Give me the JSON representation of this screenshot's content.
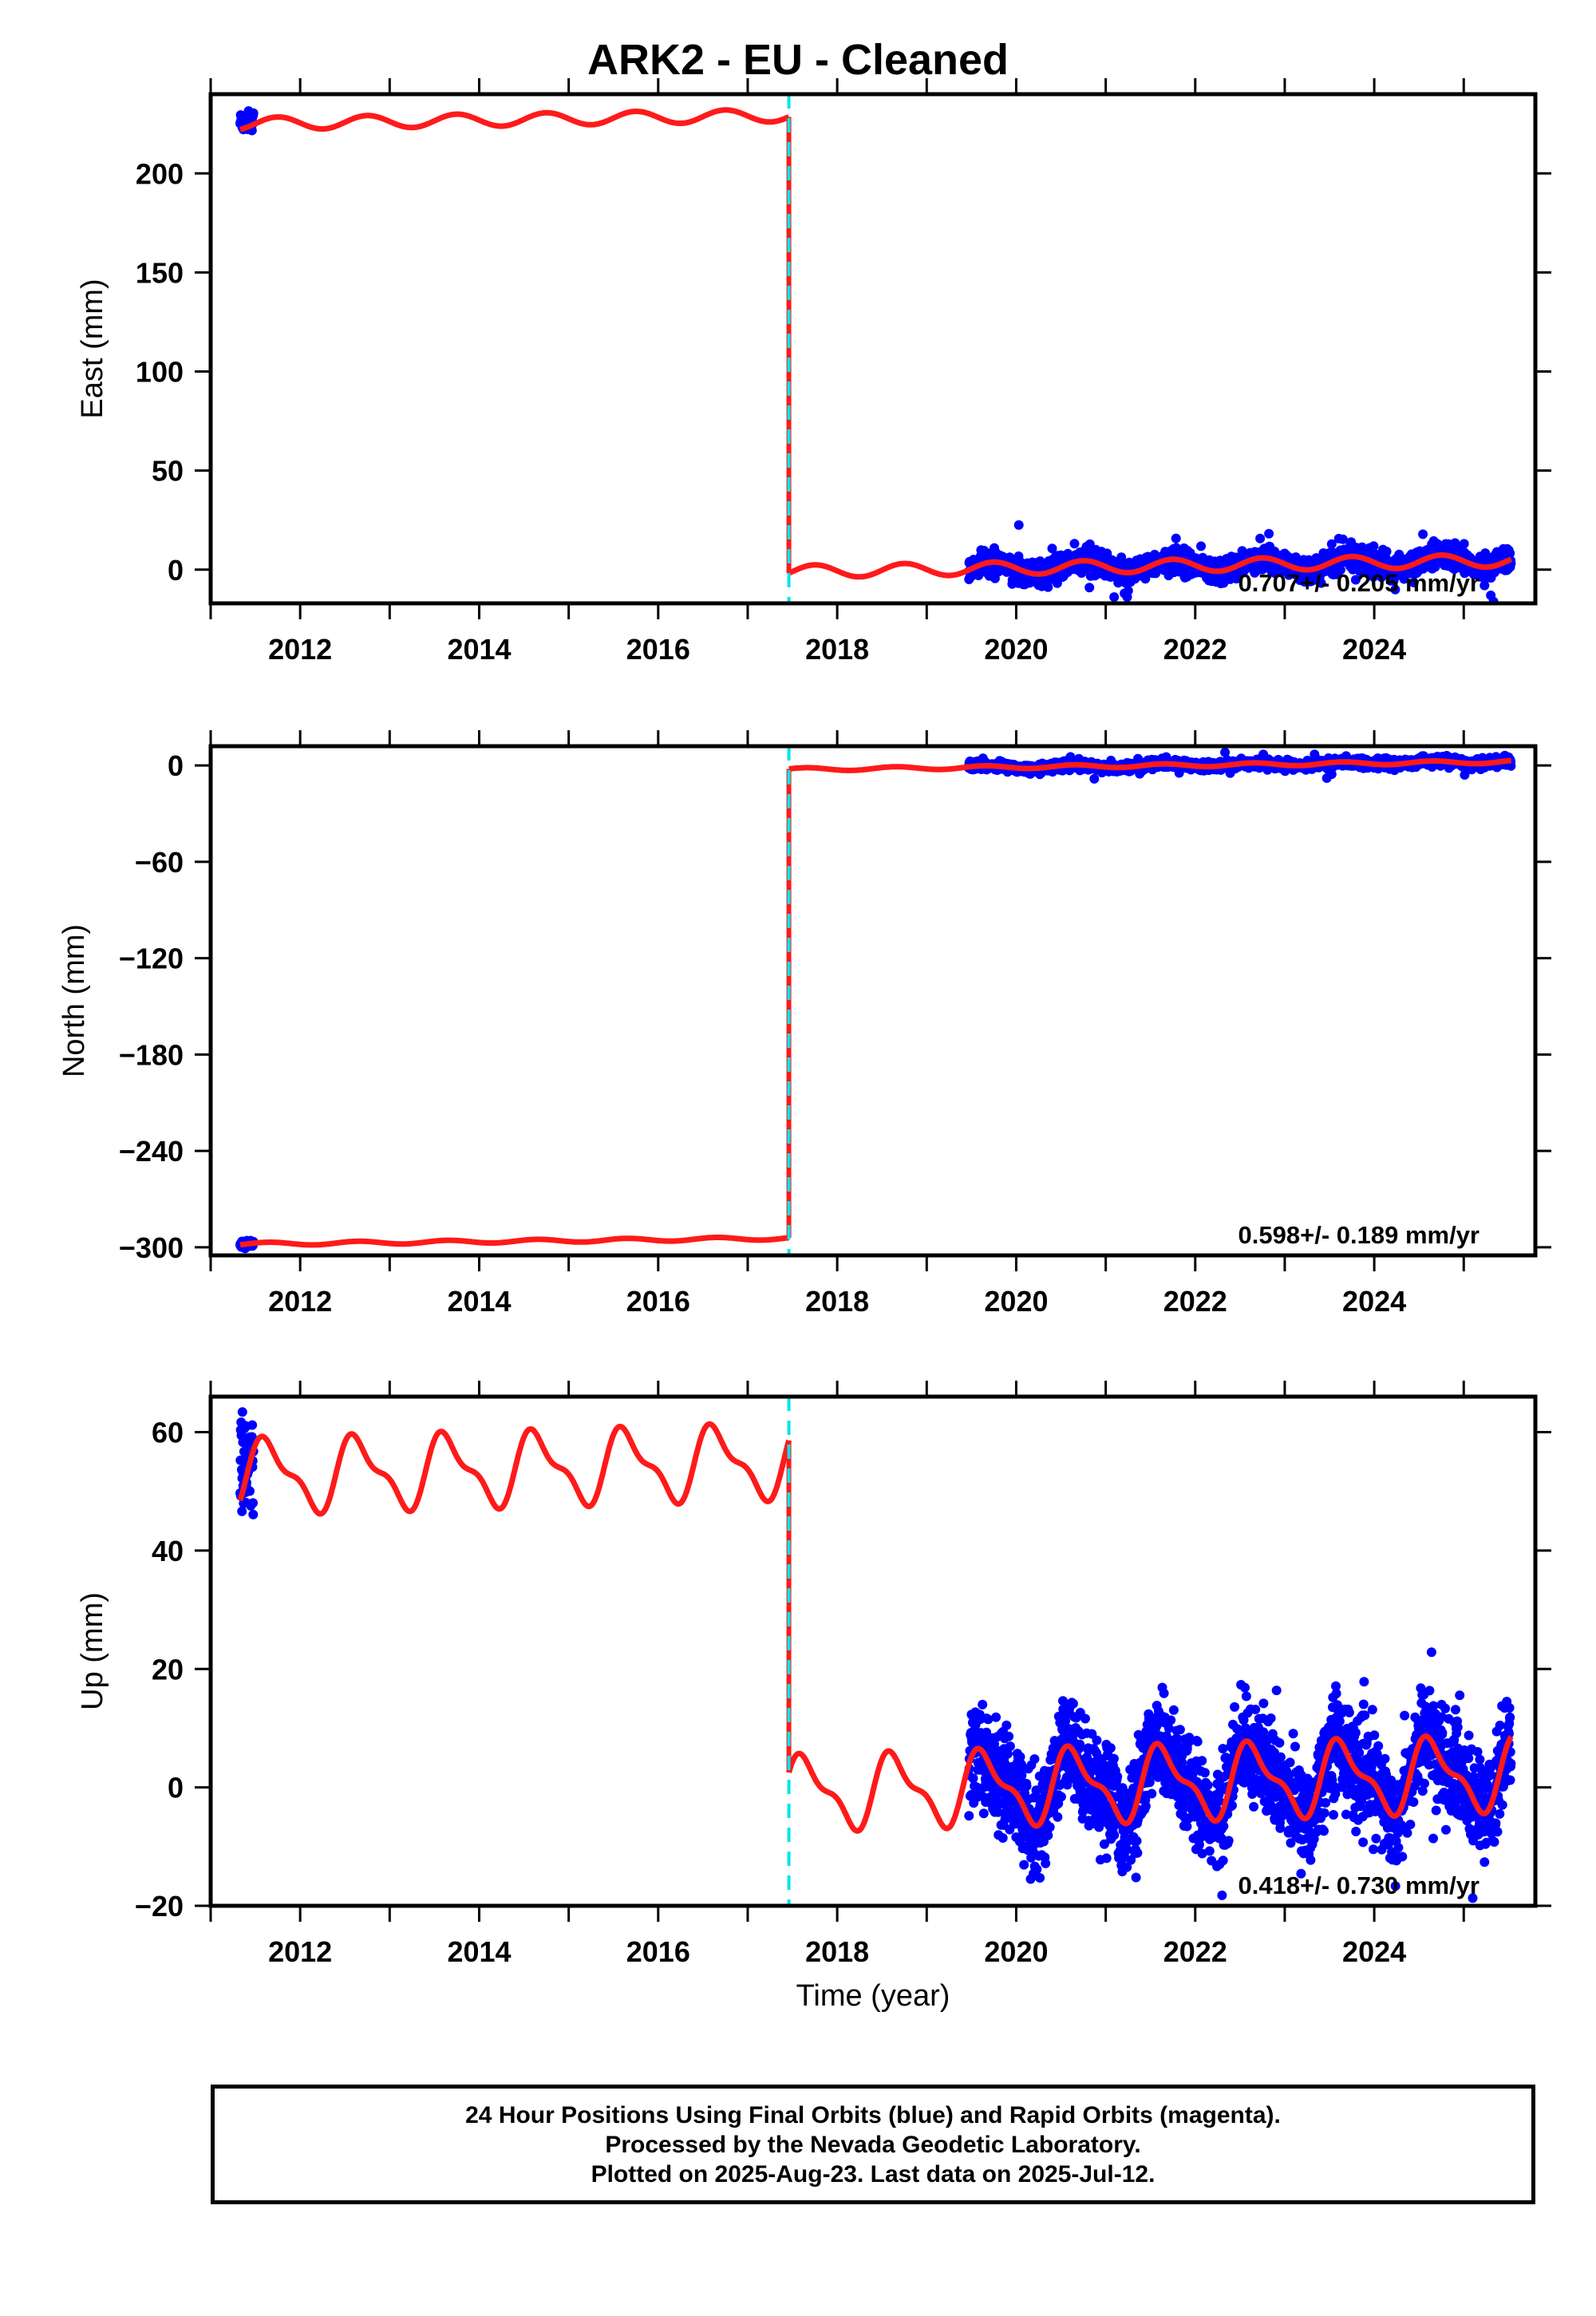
{
  "title": "ARK2  - EU - Cleaned",
  "colors": {
    "observations": "#0000ff",
    "model": "#ff1a1a",
    "equipment_change": "#00e5ee",
    "axes": "#000000"
  },
  "footer": {
    "line1": "24 Hour Positions Using Final Orbits (blue) and Rapid Orbits (magenta).",
    "line2": "Processed by the Nevada Geodetic Laboratory.",
    "line3": "Plotted on 2025-Aug-23. Last data on 2025-Jul-12."
  },
  "chart_data": [
    {
      "type": "scatter",
      "component": "east",
      "ylabel": "East (mm)",
      "xlabel": "",
      "xlim": [
        2011.0,
        2025.8
      ],
      "ylim": [
        -17,
        240
      ],
      "xticks": [
        2012,
        2014,
        2016,
        2018,
        2020,
        2022,
        2024
      ],
      "yticks": [
        0,
        50,
        100,
        150,
        200
      ],
      "grid": false,
      "rate_label": "0.707+/- 0.205 mm/yr",
      "offset_epoch": 2017.46,
      "observations": {
        "segments": [
          {
            "start": 2011.33,
            "end": 2011.48,
            "mean": 226.0,
            "scatter": 2.5
          },
          {
            "start": 2019.47,
            "end": 2025.53,
            "scatter": 2.8
          }
        ]
      },
      "model": {
        "pre_offset": {
          "start": 2011.33,
          "end": 2017.46,
          "base": 225.0,
          "rate": 0.707,
          "annual_amp": 3.2,
          "annual_phase": 0.5,
          "semi_amp": 0.0
        },
        "post_offset": {
          "start": 2017.46,
          "end": 2025.53,
          "base": -1.0,
          "rate": 0.707,
          "annual_amp": 3.2,
          "annual_phase": 0.5,
          "semi_amp": 0.0
        }
      }
    },
    {
      "type": "scatter",
      "component": "north",
      "ylabel": "North (mm)",
      "xlabel": "",
      "xlim": [
        2011.0,
        2025.8
      ],
      "ylim": [
        -305,
        12
      ],
      "xticks": [
        2012,
        2014,
        2016,
        2018,
        2020,
        2022,
        2024
      ],
      "yticks": [
        0,
        -60,
        -120,
        -180,
        -240,
        -300
      ],
      "ytick_labels": [
        "0",
        "−60",
        "−120",
        "−180",
        "−240",
        "−300"
      ],
      "grid": false,
      "rate_label": "0.598+/- 0.189 mm/yr",
      "offset_epoch": 2017.46,
      "observations": {
        "segments": [
          {
            "start": 2011.33,
            "end": 2011.48,
            "mean": -298.0,
            "scatter": 1.2
          },
          {
            "start": 2019.47,
            "end": 2025.53,
            "scatter": 1.3
          }
        ]
      },
      "model": {
        "pre_offset": {
          "start": 2011.33,
          "end": 2017.46,
          "base": -298.0,
          "rate": 0.598,
          "annual_amp": 1.0,
          "annual_phase": 0.6,
          "semi_amp": 0.0
        },
        "post_offset": {
          "start": 2017.46,
          "end": 2025.53,
          "base": -2.5,
          "rate": 0.598,
          "annual_amp": 1.0,
          "annual_phase": 0.6,
          "semi_amp": 0.0
        }
      }
    },
    {
      "type": "scatter",
      "component": "up",
      "ylabel": "Up (mm)",
      "xlabel": "Time (year)",
      "xlim": [
        2011.0,
        2025.8
      ],
      "ylim": [
        -20,
        66
      ],
      "xticks": [
        2012,
        2014,
        2016,
        2018,
        2020,
        2022,
        2024
      ],
      "yticks": [
        -20,
        0,
        20,
        40,
        60
      ],
      "ytick_labels": [
        "−20",
        "0",
        "20",
        "40",
        "60"
      ],
      "grid": false,
      "rate_label": "0.418+/- 0.730 mm/yr",
      "offset_epoch": 2017.46,
      "observations": {
        "segments": [
          {
            "start": 2011.33,
            "end": 2011.48,
            "mean": 54.0,
            "scatter": 4.0
          },
          {
            "start": 2019.47,
            "end": 2025.53,
            "scatter": 4.2
          }
        ]
      },
      "model": {
        "pre_offset": {
          "start": 2011.33,
          "end": 2017.46,
          "base": 52.5,
          "rate": 0.418,
          "annual_amp": 5.5,
          "annual_phase": 0.6,
          "semi_amp": 2.2
        },
        "post_offset": {
          "start": 2017.46,
          "end": 2025.53,
          "base": -1.0,
          "rate": 0.418,
          "annual_amp": 5.5,
          "annual_phase": 0.6,
          "semi_amp": 2.2
        }
      }
    }
  ]
}
